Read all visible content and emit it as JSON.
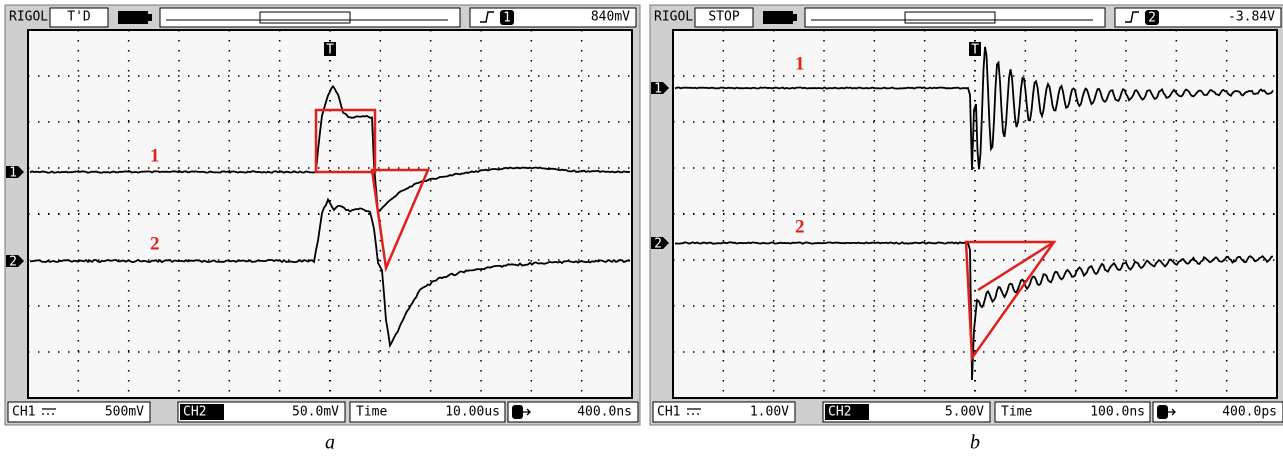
{
  "panels": [
    {
      "header": {
        "brand": "RIGOL",
        "status": "T'D",
        "trigger_channel": "1",
        "trigger_level": "840mV"
      },
      "trigger_marker": "T",
      "channel_markers": [
        "1",
        "2"
      ],
      "trace_labels": [
        "1",
        "2"
      ],
      "footer": {
        "ch1_label": "CH1",
        "ch1_scale": "500mV",
        "ch2_label": "CH2",
        "ch2_scale": "50.0mV",
        "time_label": "Time",
        "time_scale": "10.00us",
        "delay": "400.0ns"
      },
      "caption": "a"
    },
    {
      "header": {
        "brand": "RIGOL",
        "status": "STOP",
        "trigger_channel": "2",
        "trigger_level": "-3.84V"
      },
      "trigger_marker": "T",
      "channel_markers": [
        "1",
        "2"
      ],
      "trace_labels": [
        "1",
        "2"
      ],
      "footer": {
        "ch1_label": "CH1",
        "ch1_scale": "1.00V",
        "ch2_label": "CH2",
        "ch2_scale": "5.00V",
        "time_label": "Time",
        "time_scale": "100.0ns",
        "delay": "400.0ps"
      },
      "caption": "b"
    }
  ]
}
